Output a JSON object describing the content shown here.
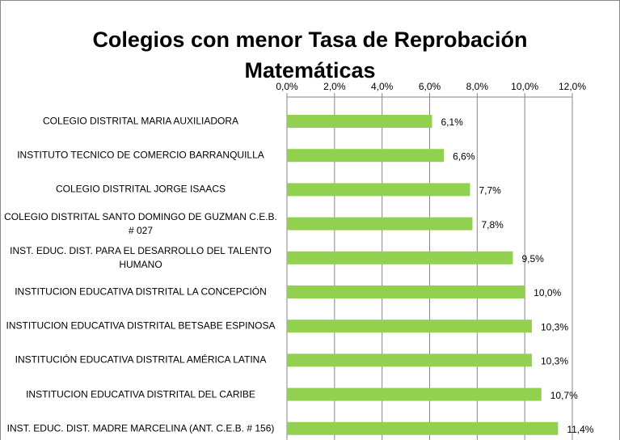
{
  "chart_data": {
    "type": "bar",
    "orientation": "horizontal",
    "title": "Colegios con menor Tasa de Reprobación Matemáticas",
    "categories": [
      "COLEGIO DISTRITAL MARIA AUXILIADORA",
      "INSTITUTO TECNICO DE COMERCIO BARRANQUILLA",
      "COLEGIO DISTRITAL JORGE ISAACS",
      "COLEGIO DISTRITAL SANTO DOMINGO DE GUZMAN C.E.B. # 027",
      "INST. EDUC. DIST. PARA EL DESARROLLO DEL TALENTO HUMANO",
      "INSTITUCION EDUCATIVA DISTRITAL LA CONCEPCIÓN",
      "INSTITUCION EDUCATIVA DISTRITAL BETSABE ESPINOSA",
      "INSTITUCIÓN EDUCATIVA DISTRITAL AMÉRICA LATINA",
      "INSTITUCION EDUCATIVA DISTRITAL DEL CARIBE",
      "INST. EDUC. DIST. MADRE MARCELINA (ANT. C.E.B. # 156)"
    ],
    "values": [
      6.1,
      6.6,
      7.7,
      7.8,
      9.5,
      10.0,
      10.3,
      10.3,
      10.7,
      11.4
    ],
    "value_labels": [
      "6,1%",
      "6,6%",
      "7,7%",
      "7,8%",
      "9,5%",
      "10,0%",
      "10,3%",
      "10,3%",
      "10,7%",
      "11,4%"
    ],
    "color": "#92d050",
    "xlim": [
      0,
      12
    ],
    "xticks": [
      {
        "value": 0,
        "label": "0,0%"
      },
      {
        "value": 2,
        "label": "2,0%"
      },
      {
        "value": 4,
        "label": "4,0%"
      },
      {
        "value": 6,
        "label": "6,0%"
      },
      {
        "value": 8,
        "label": "8,0%"
      },
      {
        "value": 10,
        "label": "10,0%"
      },
      {
        "value": 12,
        "label": "12,0%"
      }
    ],
    "grid": true
  }
}
